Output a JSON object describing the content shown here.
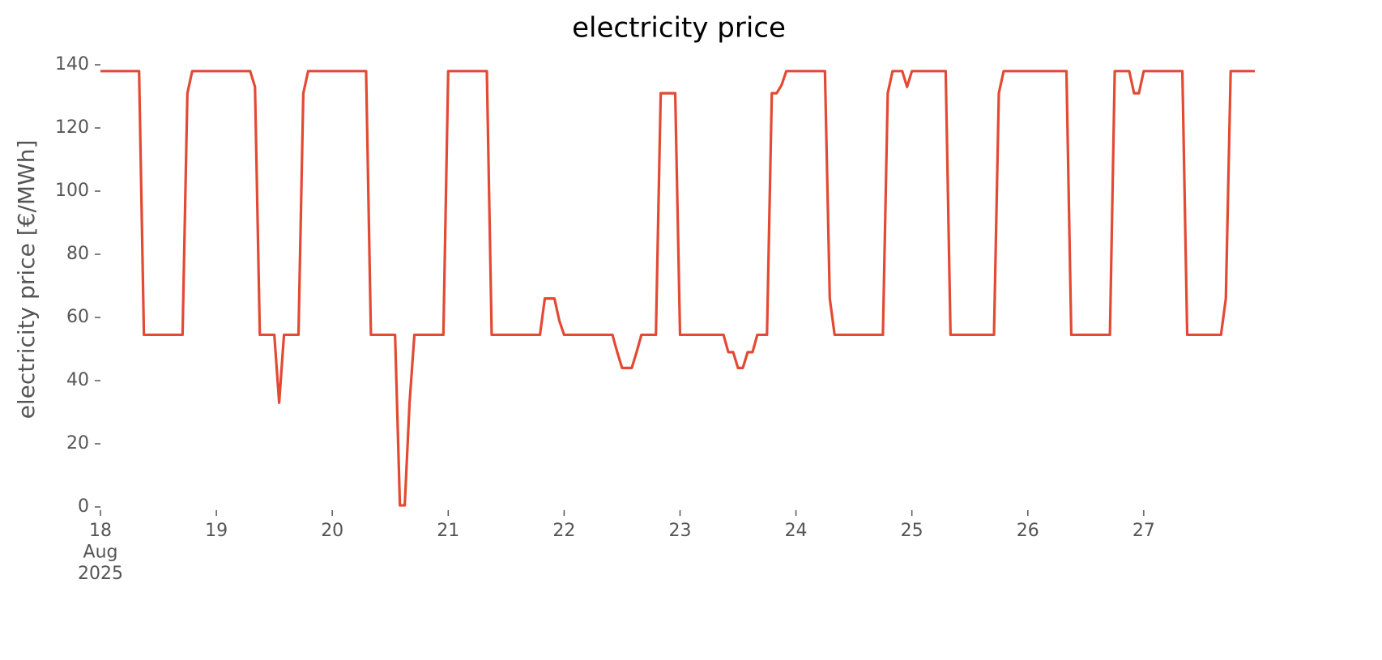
{
  "chart_data": {
    "type": "line",
    "title": "electricity price",
    "y_label": "electricity price [€/MWh]",
    "x": [
      0,
      1,
      2,
      3,
      4,
      5,
      6,
      7,
      8,
      9,
      10,
      11,
      12,
      13,
      14,
      15,
      16,
      17,
      18,
      19,
      20,
      21,
      22,
      23,
      24,
      25,
      26,
      27,
      28,
      29,
      30,
      31,
      32,
      33,
      34,
      35,
      36,
      37,
      38,
      39,
      40,
      41,
      42,
      43,
      44,
      45,
      46,
      47,
      48,
      49,
      50,
      51,
      52,
      53,
      54,
      55,
      56,
      57,
      58,
      59,
      60,
      61,
      62,
      63,
      64,
      65,
      66,
      67,
      68,
      69,
      70,
      71,
      72,
      73,
      74,
      75,
      76,
      77,
      78,
      79,
      80,
      81,
      82,
      83,
      84,
      85,
      86,
      87,
      88,
      89,
      90,
      91,
      92,
      93,
      94,
      95,
      96,
      97,
      98,
      99,
      100,
      101,
      102,
      103,
      104,
      105,
      106,
      107,
      108,
      109,
      110,
      111,
      112,
      113,
      114,
      115,
      116,
      117,
      118,
      119,
      120,
      121,
      122,
      123,
      124,
      125,
      126,
      127,
      128,
      129,
      130,
      131,
      132,
      133,
      134,
      135,
      136,
      137,
      138,
      139,
      140,
      141,
      142,
      143,
      144,
      145,
      146,
      147,
      148,
      149,
      150,
      151,
      152,
      153,
      154,
      155,
      156,
      157,
      158,
      159,
      160,
      161,
      162,
      163,
      164,
      165,
      166,
      167,
      168,
      169,
      170,
      171,
      172,
      173,
      174,
      175,
      176,
      177,
      178,
      179,
      180,
      181,
      182,
      183,
      184,
      185,
      186,
      187,
      188,
      189,
      190,
      191,
      192,
      193,
      194,
      195,
      196,
      197,
      198,
      199,
      200,
      201,
      202,
      203,
      204,
      205,
      206,
      207,
      208,
      209,
      210,
      211,
      212,
      213,
      214,
      215,
      216,
      217,
      218,
      219,
      220,
      221,
      222,
      223,
      224,
      225,
      226,
      227,
      228,
      229,
      230,
      231,
      232,
      233,
      234,
      235,
      236,
      237,
      238,
      239
    ],
    "series": [
      {
        "name": "electricity price",
        "color": "#e24a33",
        "values": [
          138,
          138,
          138,
          138,
          138,
          138,
          138,
          138,
          138,
          54.5,
          54.5,
          54.5,
          54.5,
          54.5,
          54.5,
          54.5,
          54.5,
          54.5,
          131,
          138,
          138,
          138,
          138,
          138,
          138,
          138,
          138,
          138,
          138,
          138,
          138,
          138,
          133,
          54.5,
          54.5,
          54.5,
          54.5,
          33,
          54.5,
          54.5,
          54.5,
          54.5,
          131,
          138,
          138,
          138,
          138,
          138,
          138,
          138,
          138,
          138,
          138,
          138,
          138,
          138,
          54.5,
          54.5,
          54.5,
          54.5,
          54.5,
          54.5,
          0.5,
          0.5,
          33,
          54.5,
          54.5,
          54.5,
          54.5,
          54.5,
          54.5,
          54.5,
          138,
          138,
          138,
          138,
          138,
          138,
          138,
          138,
          138,
          54.5,
          54.5,
          54.5,
          54.5,
          54.5,
          54.5,
          54.5,
          54.5,
          54.5,
          54.5,
          54.5,
          66,
          66,
          66,
          59,
          54.5,
          54.5,
          54.5,
          54.5,
          54.5,
          54.5,
          54.5,
          54.5,
          54.5,
          54.5,
          54.5,
          49,
          44,
          44,
          44,
          49,
          54.5,
          54.5,
          54.5,
          54.5,
          131,
          131,
          131,
          131,
          54.5,
          54.5,
          54.5,
          54.5,
          54.5,
          54.5,
          54.5,
          54.5,
          54.5,
          54.5,
          49,
          49,
          44,
          44,
          49,
          49,
          54.5,
          54.5,
          54.5,
          131,
          131,
          133.5,
          138,
          138,
          138,
          138,
          138,
          138,
          138,
          138,
          138,
          66,
          54.5,
          54.5,
          54.5,
          54.5,
          54.5,
          54.5,
          54.5,
          54.5,
          54.5,
          54.5,
          54.5,
          131,
          138,
          138,
          138,
          133,
          138,
          138,
          138,
          138,
          138,
          138,
          138,
          138,
          54.5,
          54.5,
          54.5,
          54.5,
          54.5,
          54.5,
          54.5,
          54.5,
          54.5,
          54.5,
          131,
          138,
          138,
          138,
          138,
          138,
          138,
          138,
          138,
          138,
          138,
          138,
          138,
          138,
          138,
          54.5,
          54.5,
          54.5,
          54.5,
          54.5,
          54.5,
          54.5,
          54.5,
          54.5,
          138,
          138,
          138,
          138,
          131,
          131,
          138,
          138,
          138,
          138,
          138,
          138,
          138,
          138,
          138,
          54.5,
          54.5,
          54.5,
          54.5,
          54.5,
          54.5,
          54.5,
          54.5,
          66,
          138,
          138,
          138,
          138,
          138,
          138
        ]
      }
    ],
    "xlim": [
      0,
      239
    ],
    "xticks": [
      {
        "value": 0,
        "label": "18\nAug\n2025"
      },
      {
        "value": 24,
        "label": "19"
      },
      {
        "value": 48,
        "label": "20"
      },
      {
        "value": 72,
        "label": "21"
      },
      {
        "value": 96,
        "label": "22"
      },
      {
        "value": 120,
        "label": "23"
      },
      {
        "value": 144,
        "label": "24"
      },
      {
        "value": 168,
        "label": "25"
      },
      {
        "value": 192,
        "label": "26"
      },
      {
        "value": 216,
        "label": "27"
      }
    ],
    "ylim": [
      0,
      140
    ],
    "yticks": [
      0,
      20,
      40,
      60,
      80,
      100,
      120,
      140
    ],
    "grid": false
  }
}
